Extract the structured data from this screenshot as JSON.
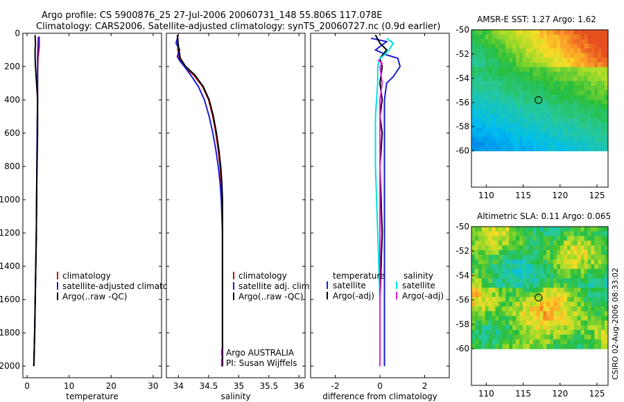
{
  "figure": {
    "title_line1": "Argo profile: CS 5900876_25 27-Jul-2006 20060731_148 55.806S 117.078E",
    "title_line2": "Climatology: CARS2006. Satellite-adjusted climatology: synTS_20060727.nc (0.9d earlier)",
    "footer": "CSIRO 02-Aug-2006 08:33:02"
  },
  "chart_data": [
    {
      "id": "temperature",
      "type": "line",
      "xlabel": "temperature",
      "xlim": [
        -1,
        32
      ],
      "ylim": [
        2070,
        0
      ],
      "xticks": [
        0,
        10,
        20,
        30
      ],
      "yticks": [
        0,
        200,
        400,
        600,
        800,
        1000,
        1200,
        1400,
        1600,
        1800,
        2000
      ],
      "legend": [
        "climatology",
        "satellite-adjusted climatology",
        "Argo(..raw -QC)"
      ],
      "series": [
        {
          "name": "climatology",
          "color": "#d00000",
          "points": [
            [
              2.9,
              20
            ],
            [
              2.9,
              80
            ],
            [
              2.6,
              150
            ],
            [
              2.5,
              250
            ],
            [
              2.5,
              400
            ],
            [
              2.4,
              600
            ],
            [
              2.3,
              900
            ],
            [
              2.2,
              1200
            ],
            [
              2.0,
              1500
            ],
            [
              1.8,
              1800
            ],
            [
              1.6,
              2000
            ]
          ]
        },
        {
          "name": "satellite-adjusted climatology",
          "color": "#1a1ad6",
          "points": [
            [
              2.7,
              20
            ],
            [
              2.6,
              80
            ],
            [
              2.5,
              150
            ],
            [
              2.5,
              250
            ],
            [
              2.5,
              400
            ],
            [
              2.4,
              600
            ],
            [
              2.3,
              900
            ],
            [
              2.2,
              1200
            ],
            [
              2.0,
              1500
            ],
            [
              1.8,
              1800
            ],
            [
              1.6,
              2000
            ]
          ]
        },
        {
          "name": "Argo(..raw -QC)",
          "color": "#000000",
          "points": [
            [
              1.9,
              10
            ],
            [
              2.0,
              60
            ],
            [
              1.9,
              100
            ],
            [
              1.9,
              150
            ],
            [
              2.0,
              200
            ],
            [
              2.2,
              280
            ],
            [
              2.5,
              400
            ],
            [
              2.5,
              600
            ],
            [
              2.3,
              900
            ],
            [
              2.2,
              1200
            ],
            [
              2.0,
              1500
            ],
            [
              1.8,
              1800
            ],
            [
              1.6,
              2000
            ]
          ]
        }
      ]
    },
    {
      "id": "salinity",
      "type": "line",
      "xlabel": "salinity",
      "xlim": [
        33.8,
        36.1
      ],
      "ylim": [
        2070,
        0
      ],
      "xticks": [
        34,
        34.5,
        35,
        35.5,
        36
      ],
      "yticks": [
        0,
        200,
        400,
        600,
        800,
        1000,
        1200,
        1400,
        1600,
        1800,
        2000
      ],
      "legend": [
        "climatology",
        "satellite adj. clim.",
        "Argo(..raw -QC)"
      ],
      "annotation": [
        "Argo AUSTRALIA",
        "PI: Susan Wijffels"
      ],
      "series": [
        {
          "name": "climatology",
          "color": "#d00000",
          "points": [
            [
              33.99,
              20
            ],
            [
              33.99,
              100
            ],
            [
              34.02,
              160
            ],
            [
              34.1,
              200
            ],
            [
              34.25,
              250
            ],
            [
              34.4,
              320
            ],
            [
              34.5,
              400
            ],
            [
              34.57,
              500
            ],
            [
              34.62,
              600
            ],
            [
              34.66,
              700
            ],
            [
              34.69,
              800
            ],
            [
              34.71,
              900
            ],
            [
              34.72,
              1000
            ],
            [
              34.73,
              1100
            ],
            [
              34.73,
              1200
            ],
            [
              34.73,
              1500
            ],
            [
              34.73,
              2000
            ]
          ]
        },
        {
          "name": "satellite adj. clim.",
          "color": "#1a1ad6",
          "points": [
            [
              33.99,
              20
            ],
            [
              33.96,
              60
            ],
            [
              34.02,
              100
            ],
            [
              33.98,
              140
            ],
            [
              34.03,
              170
            ],
            [
              34.1,
              200
            ],
            [
              34.2,
              250
            ],
            [
              34.33,
              320
            ],
            [
              34.43,
              400
            ],
            [
              34.51,
              500
            ],
            [
              34.57,
              600
            ],
            [
              34.62,
              700
            ],
            [
              34.66,
              800
            ],
            [
              34.69,
              900
            ],
            [
              34.71,
              1000
            ],
            [
              34.72,
              1100
            ],
            [
              34.73,
              1200
            ],
            [
              34.73,
              1500
            ],
            [
              34.73,
              2000
            ]
          ]
        },
        {
          "name": "Argo(..raw -QC)",
          "color": "#000000",
          "points": [
            [
              33.98,
              10
            ],
            [
              34.0,
              80
            ],
            [
              34.03,
              150
            ],
            [
              34.12,
              200
            ],
            [
              34.27,
              250
            ],
            [
              34.41,
              320
            ],
            [
              34.51,
              400
            ],
            [
              34.58,
              500
            ],
            [
              34.63,
              600
            ],
            [
              34.67,
              700
            ],
            [
              34.7,
              800
            ],
            [
              34.72,
              900
            ],
            [
              34.73,
              1000
            ],
            [
              34.73,
              1200
            ],
            [
              34.73,
              2000
            ]
          ]
        }
      ]
    },
    {
      "id": "difference",
      "type": "line",
      "xlabel": "difference from climatology",
      "xlim": [
        -3.1,
        3.1
      ],
      "ylim": [
        2070,
        0
      ],
      "xticks": [
        -2,
        0,
        2
      ],
      "yticks": [
        0,
        200,
        400,
        600,
        800,
        1000,
        1200,
        1400,
        1600,
        1800,
        2000
      ],
      "legend_headers": [
        "temperature",
        "salinity"
      ],
      "legend": [
        "satellite",
        "Argo(-adj)",
        "satellite",
        "Argo(-adj)"
      ],
      "series": [
        {
          "name": "temperature satellite",
          "color": "#1a1ad6",
          "points": [
            [
              -0.4,
              30
            ],
            [
              0.3,
              50
            ],
            [
              0.1,
              70
            ],
            [
              -0.2,
              100
            ],
            [
              0.3,
              130
            ],
            [
              0.8,
              150
            ],
            [
              0.9,
              200
            ],
            [
              0.6,
              260
            ],
            [
              0.3,
              300
            ],
            [
              0.2,
              400
            ],
            [
              0.2,
              600
            ],
            [
              0.2,
              1000
            ],
            [
              0.2,
              1500
            ],
            [
              0.2,
              2000
            ]
          ]
        },
        {
          "name": "temperature Argo(-adj)",
          "color": "#000000",
          "points": [
            [
              -0.2,
              10
            ],
            [
              0.0,
              60
            ],
            [
              0.3,
              100
            ],
            [
              0.0,
              150
            ],
            [
              0.1,
              200
            ],
            [
              0.0,
              300
            ],
            [
              0.1,
              400
            ],
            [
              0.0,
              500
            ],
            [
              0.1,
              600
            ],
            [
              0.0,
              800
            ],
            [
              0.1,
              1200
            ],
            [
              0.0,
              1600
            ],
            [
              0.0,
              2000
            ]
          ]
        },
        {
          "name": "salinity satellite",
          "color": "#00e0e0",
          "points": [
            [
              0.3,
              30
            ],
            [
              0.6,
              60
            ],
            [
              0.4,
              100
            ],
            [
              0.2,
              130
            ],
            [
              0.0,
              150
            ],
            [
              -0.1,
              200
            ],
            [
              -0.1,
              300
            ],
            [
              -0.2,
              500
            ],
            [
              -0.2,
              800
            ],
            [
              -0.1,
              1200
            ],
            [
              0.0,
              1600
            ],
            [
              0.0,
              2000
            ]
          ]
        },
        {
          "name": "salinity Argo(-adj)",
          "color": "#e020e0",
          "points": [
            [
              -0.1,
              160
            ],
            [
              0.1,
              180
            ],
            [
              0.0,
              200
            ],
            [
              0.1,
              300
            ],
            [
              0.0,
              400
            ],
            [
              0.0,
              600
            ],
            [
              0.0,
              1000
            ],
            [
              0.0,
              1500
            ],
            [
              0.0,
              2000
            ]
          ]
        }
      ]
    },
    {
      "id": "sst_map",
      "type": "heatmap",
      "title": "AMSR-E SST: 1.27 Argo: 1.62",
      "xticks": [
        110,
        115,
        120,
        125
      ],
      "yticks": [
        -50,
        -52,
        -54,
        -56,
        -58,
        -60
      ],
      "xlim": [
        108,
        126.5
      ],
      "ylim": [
        -63,
        -50
      ],
      "data_extent": {
        "lon": [
          108,
          126.5
        ],
        "lat": [
          -60,
          -50
        ]
      },
      "marker": {
        "lon": 117.078,
        "lat": -55.806
      }
    },
    {
      "id": "sla_map",
      "type": "heatmap",
      "title": "Altimetric SLA: 0.11 Argo: 0.065",
      "xticks": [
        110,
        115,
        120,
        125
      ],
      "yticks": [
        -50,
        -52,
        -54,
        -56,
        -58,
        -60
      ],
      "xlim": [
        108,
        126.5
      ],
      "ylim": [
        -63,
        -50
      ],
      "data_extent": {
        "lon": [
          108,
          126.5
        ],
        "lat": [
          -60,
          -50
        ]
      },
      "marker": {
        "lon": 117.078,
        "lat": -55.806
      }
    }
  ]
}
